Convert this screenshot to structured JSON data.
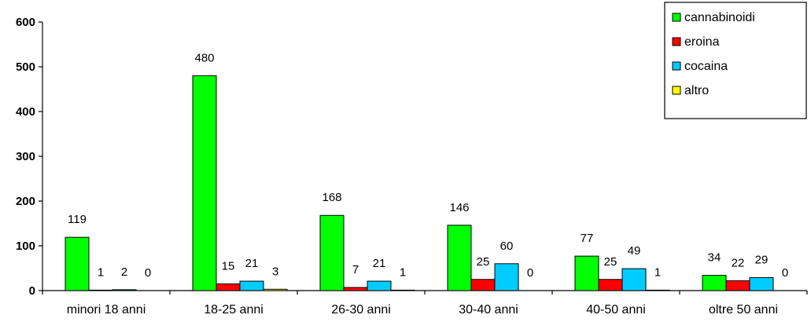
{
  "chart_data": {
    "type": "bar",
    "categories": [
      "minori 18 anni",
      "18-25 anni",
      "26-30 anni",
      "30-40 anni",
      "40-50 anni",
      "oltre 50 anni"
    ],
    "series": [
      {
        "name": "cannabinoidi",
        "values": [
          119,
          480,
          168,
          146,
          77,
          34
        ],
        "color": "#00ff00"
      },
      {
        "name": "eroina",
        "values": [
          1,
          15,
          7,
          25,
          25,
          22
        ],
        "color": "#ff0000"
      },
      {
        "name": "cocaina",
        "values": [
          2,
          21,
          21,
          60,
          49,
          29
        ],
        "color": "#00ccff"
      },
      {
        "name": "altro",
        "values": [
          0,
          3,
          1,
          0,
          1,
          0
        ],
        "color": "#ffff00"
      }
    ],
    "ylim": [
      0,
      600
    ],
    "yticks": [
      0,
      100,
      200,
      300,
      400,
      500,
      600
    ],
    "grid": false,
    "legend_position": "top-right"
  }
}
